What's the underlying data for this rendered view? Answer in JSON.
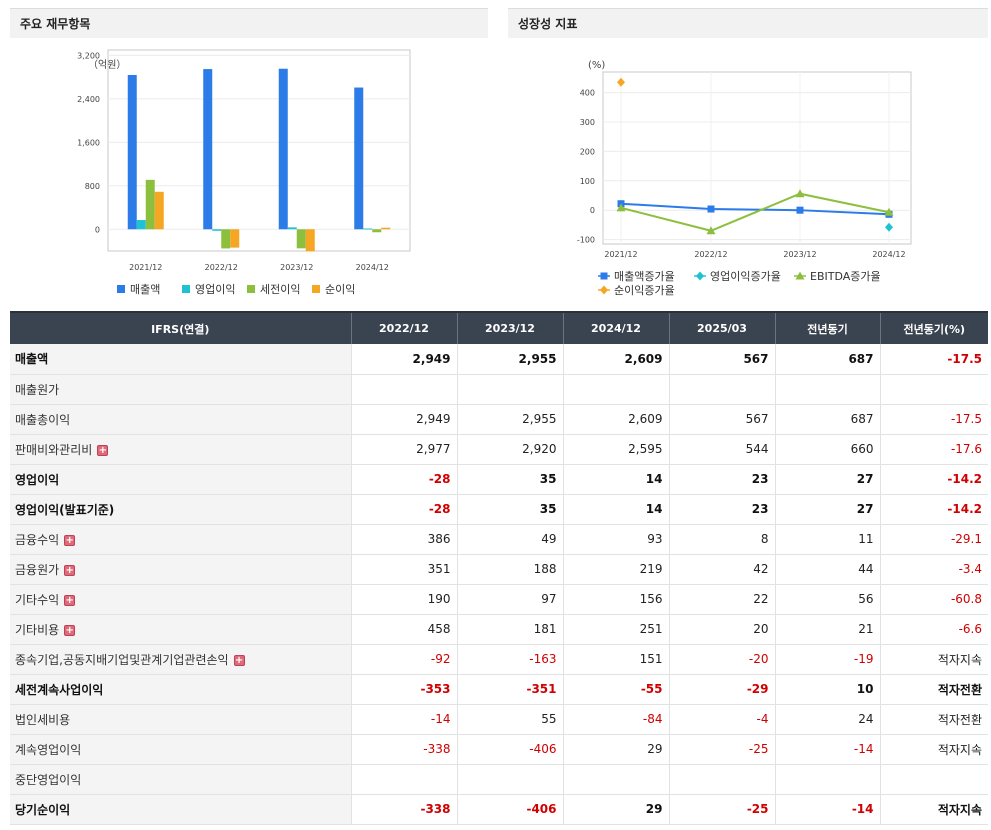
{
  "panels": {
    "left_title": "주요 재무항목",
    "right_title": "성장성 지표"
  },
  "chart_data": [
    {
      "type": "bar",
      "unit_label": "（억원）",
      "categories": [
        "2021/12",
        "2022/12",
        "2023/12",
        "2024/12"
      ],
      "series": [
        {
          "name": "매출액",
          "color": "#2b7be8",
          "values": [
            2840,
            2949,
            2955,
            2609
          ]
        },
        {
          "name": "영업이익",
          "color": "#1fc2d2",
          "values": [
            170,
            -28,
            35,
            14
          ]
        },
        {
          "name": "세전이익",
          "color": "#8dbf3f",
          "values": [
            910,
            -353,
            -351,
            -55
          ]
        },
        {
          "name": "순이익",
          "color": "#f5a623",
          "values": [
            690,
            -338,
            -406,
            29
          ]
        }
      ],
      "yticks": [
        3200,
        2400,
        1600,
        800,
        0
      ],
      "ytick_labels": [
        "3,200",
        "2,400",
        "1,600",
        "800",
        "0"
      ],
      "ylim": [
        -400,
        3300
      ],
      "legend": "bottom"
    },
    {
      "type": "line",
      "unit_label": "(%)",
      "categories": [
        "2021/12",
        "2022/12",
        "2023/12",
        "2024/12"
      ],
      "series": [
        {
          "name": "매출액증가율",
          "color": "#2b7be8",
          "marker": "square",
          "values": [
            22,
            4,
            0,
            -14
          ]
        },
        {
          "name": "영업이익증가율",
          "color": "#1fc2d2",
          "marker": "diamond",
          "values": [
            null,
            null,
            null,
            -58
          ]
        },
        {
          "name": "EBITDA증가율",
          "color": "#8dbf3f",
          "marker": "triangle",
          "values": [
            8,
            -70,
            56,
            -7
          ]
        },
        {
          "name": "순이익증가율",
          "color": "#f5a623",
          "marker": "diamond",
          "values": [
            435,
            null,
            null,
            null
          ]
        }
      ],
      "yticks": [
        400,
        300,
        200,
        100,
        0,
        -100
      ],
      "ytick_labels": [
        "400",
        "300",
        "200",
        "100",
        "0",
        "-100"
      ],
      "ylim": [
        -115,
        470
      ],
      "legend": "bottom"
    }
  ],
  "table": {
    "headers": [
      "IFRS(연결)",
      "2022/12",
      "2023/12",
      "2024/12",
      "2025/03",
      "전년동기",
      "전년동기(%)"
    ],
    "rows": [
      {
        "label": "매출액",
        "bold": true,
        "plus": false,
        "values": [
          "2,949",
          "2,955",
          "2,609",
          "567",
          "687",
          "-17.5"
        ]
      },
      {
        "label": "매출원가",
        "bold": false,
        "plus": false,
        "values": [
          "",
          "",
          "",
          "",
          "",
          ""
        ]
      },
      {
        "label": "매출총이익",
        "bold": false,
        "plus": false,
        "values": [
          "2,949",
          "2,955",
          "2,609",
          "567",
          "687",
          "-17.5"
        ]
      },
      {
        "label": "판매비와관리비",
        "bold": false,
        "plus": true,
        "values": [
          "2,977",
          "2,920",
          "2,595",
          "544",
          "660",
          "-17.6"
        ]
      },
      {
        "label": "영업이익",
        "bold": true,
        "plus": false,
        "values": [
          "-28",
          "35",
          "14",
          "23",
          "27",
          "-14.2"
        ]
      },
      {
        "label": "영업이익(발표기준)",
        "bold": true,
        "plus": false,
        "values": [
          "-28",
          "35",
          "14",
          "23",
          "27",
          "-14.2"
        ]
      },
      {
        "label": "금융수익",
        "bold": false,
        "plus": true,
        "values": [
          "386",
          "49",
          "93",
          "8",
          "11",
          "-29.1"
        ]
      },
      {
        "label": "금융원가",
        "bold": false,
        "plus": true,
        "values": [
          "351",
          "188",
          "219",
          "42",
          "44",
          "-3.4"
        ]
      },
      {
        "label": "기타수익",
        "bold": false,
        "plus": true,
        "values": [
          "190",
          "97",
          "156",
          "22",
          "56",
          "-60.8"
        ]
      },
      {
        "label": "기타비용",
        "bold": false,
        "plus": true,
        "values": [
          "458",
          "181",
          "251",
          "20",
          "21",
          "-6.6"
        ]
      },
      {
        "label": "종속기업,공동지배기업및관계기업관련손익",
        "bold": false,
        "plus": true,
        "values": [
          "-92",
          "-163",
          "151",
          "-20",
          "-19",
          "적자지속"
        ]
      },
      {
        "label": "세전계속사업이익",
        "bold": true,
        "plus": false,
        "values": [
          "-353",
          "-351",
          "-55",
          "-29",
          "10",
          "적자전환"
        ]
      },
      {
        "label": "법인세비용",
        "bold": false,
        "plus": false,
        "values": [
          "-14",
          "55",
          "-84",
          "-4",
          "24",
          "적자전환"
        ]
      },
      {
        "label": "계속영업이익",
        "bold": false,
        "plus": false,
        "values": [
          "-338",
          "-406",
          "29",
          "-25",
          "-14",
          "적자지속"
        ]
      },
      {
        "label": "중단영업이익",
        "bold": false,
        "plus": false,
        "values": [
          "",
          "",
          "",
          "",
          "",
          ""
        ]
      },
      {
        "label": "당기순이익",
        "bold": true,
        "plus": false,
        "values": [
          "-338",
          "-406",
          "29",
          "-25",
          "-14",
          "적자지속"
        ]
      }
    ]
  }
}
